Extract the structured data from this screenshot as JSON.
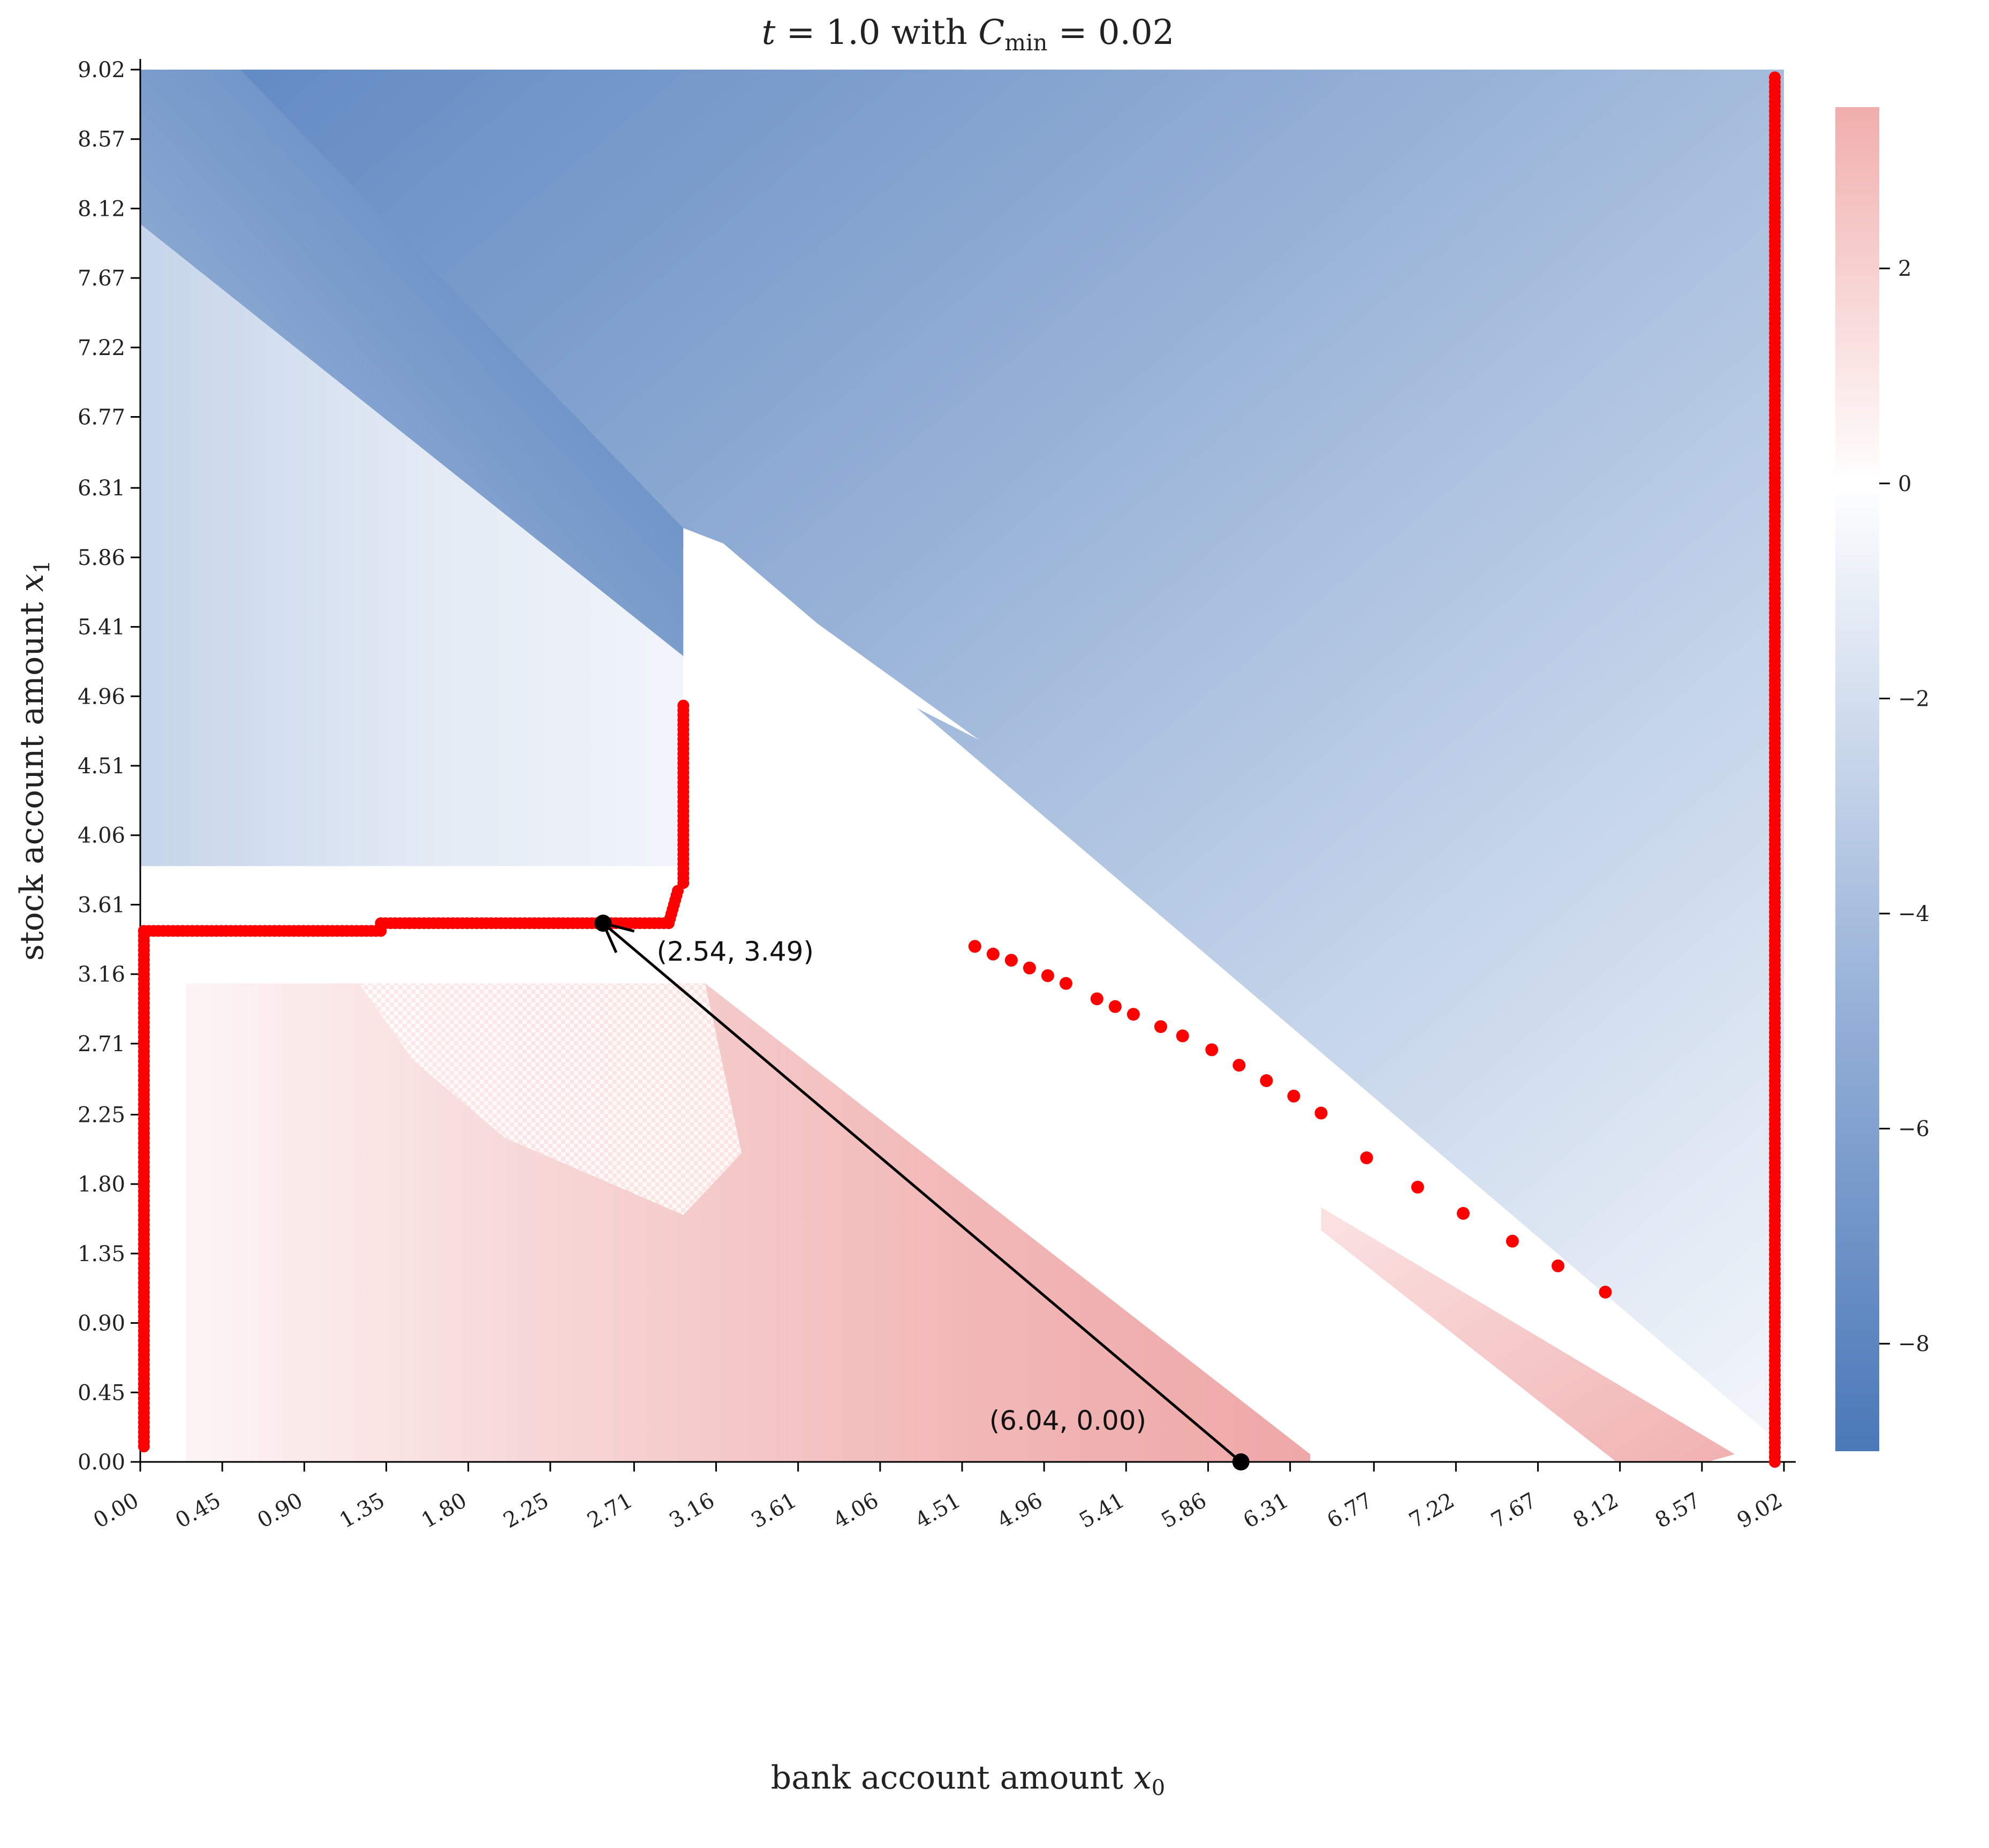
{
  "chart_data": {
    "type": "heatmap",
    "title": "t = 1.0 with C_min = 0.02",
    "xlabel": "bank account amount x_0",
    "ylabel": "stock account amount x_1",
    "x_ticks": [
      "0.00",
      "0.45",
      "0.90",
      "1.35",
      "1.80",
      "2.25",
      "2.71",
      "3.16",
      "3.61",
      "4.06",
      "4.51",
      "4.96",
      "5.41",
      "5.86",
      "6.31",
      "6.77",
      "7.22",
      "7.67",
      "8.12",
      "8.57",
      "9.02"
    ],
    "y_ticks": [
      "0.00",
      "0.45",
      "0.90",
      "1.35",
      "1.80",
      "2.25",
      "2.71",
      "3.16",
      "3.61",
      "4.06",
      "4.51",
      "4.96",
      "5.41",
      "5.86",
      "6.31",
      "6.77",
      "7.22",
      "7.67",
      "8.12",
      "8.57",
      "9.02"
    ],
    "xlim": [
      0,
      9.02
    ],
    "ylim": [
      0,
      9.02
    ],
    "colorbar": {
      "ticks": [
        "2",
        "0",
        "−2",
        "−4",
        "−6",
        "−8"
      ],
      "tick_values": [
        2,
        0,
        -2,
        -4,
        -6,
        -8
      ],
      "range": [
        -9.0,
        3.5
      ],
      "low_color": "#4a78b8",
      "mid_color": "#ffffff",
      "high_color": "#f0aeac"
    },
    "grid": false,
    "boundary_color": "#ff0000",
    "boundary_segments": [
      [
        [
          0.02,
          0.1
        ],
        [
          0.02,
          3.44
        ]
      ],
      [
        [
          0.02,
          3.44
        ],
        [
          1.32,
          3.44
        ]
      ],
      [
        [
          1.32,
          3.49
        ],
        [
          2.9,
          3.49
        ]
      ],
      [
        [
          2.9,
          3.49
        ],
        [
          2.95,
          3.7
        ]
      ],
      [
        [
          2.98,
          3.75
        ],
        [
          2.98,
          4.9
        ]
      ],
      [
        [
          8.97,
          0.0
        ],
        [
          8.97,
          8.97
        ]
      ]
    ],
    "boundary_points": [
      [
        4.58,
        3.34
      ],
      [
        4.68,
        3.29
      ],
      [
        4.78,
        3.25
      ],
      [
        4.88,
        3.2
      ],
      [
        4.98,
        3.15
      ],
      [
        5.08,
        3.1
      ],
      [
        5.25,
        3.0
      ],
      [
        5.35,
        2.95
      ],
      [
        5.45,
        2.9
      ],
      [
        5.6,
        2.82
      ],
      [
        5.72,
        2.76
      ],
      [
        5.88,
        2.67
      ],
      [
        6.03,
        2.57
      ],
      [
        6.18,
        2.47
      ],
      [
        6.33,
        2.37
      ],
      [
        6.48,
        2.26
      ],
      [
        6.73,
        1.97
      ],
      [
        7.01,
        1.78
      ],
      [
        7.26,
        1.61
      ],
      [
        7.53,
        1.43
      ],
      [
        7.78,
        1.27
      ],
      [
        8.04,
        1.1
      ]
    ],
    "annotations": [
      {
        "text": "(2.54, 3.49)",
        "point": [
          2.54,
          3.49
        ]
      },
      {
        "text": "(6.04, 0.00)",
        "point": [
          6.04,
          0.0
        ]
      }
    ],
    "arrow": {
      "from": [
        6.04,
        0.0
      ],
      "to": [
        2.54,
        3.49
      ]
    }
  }
}
